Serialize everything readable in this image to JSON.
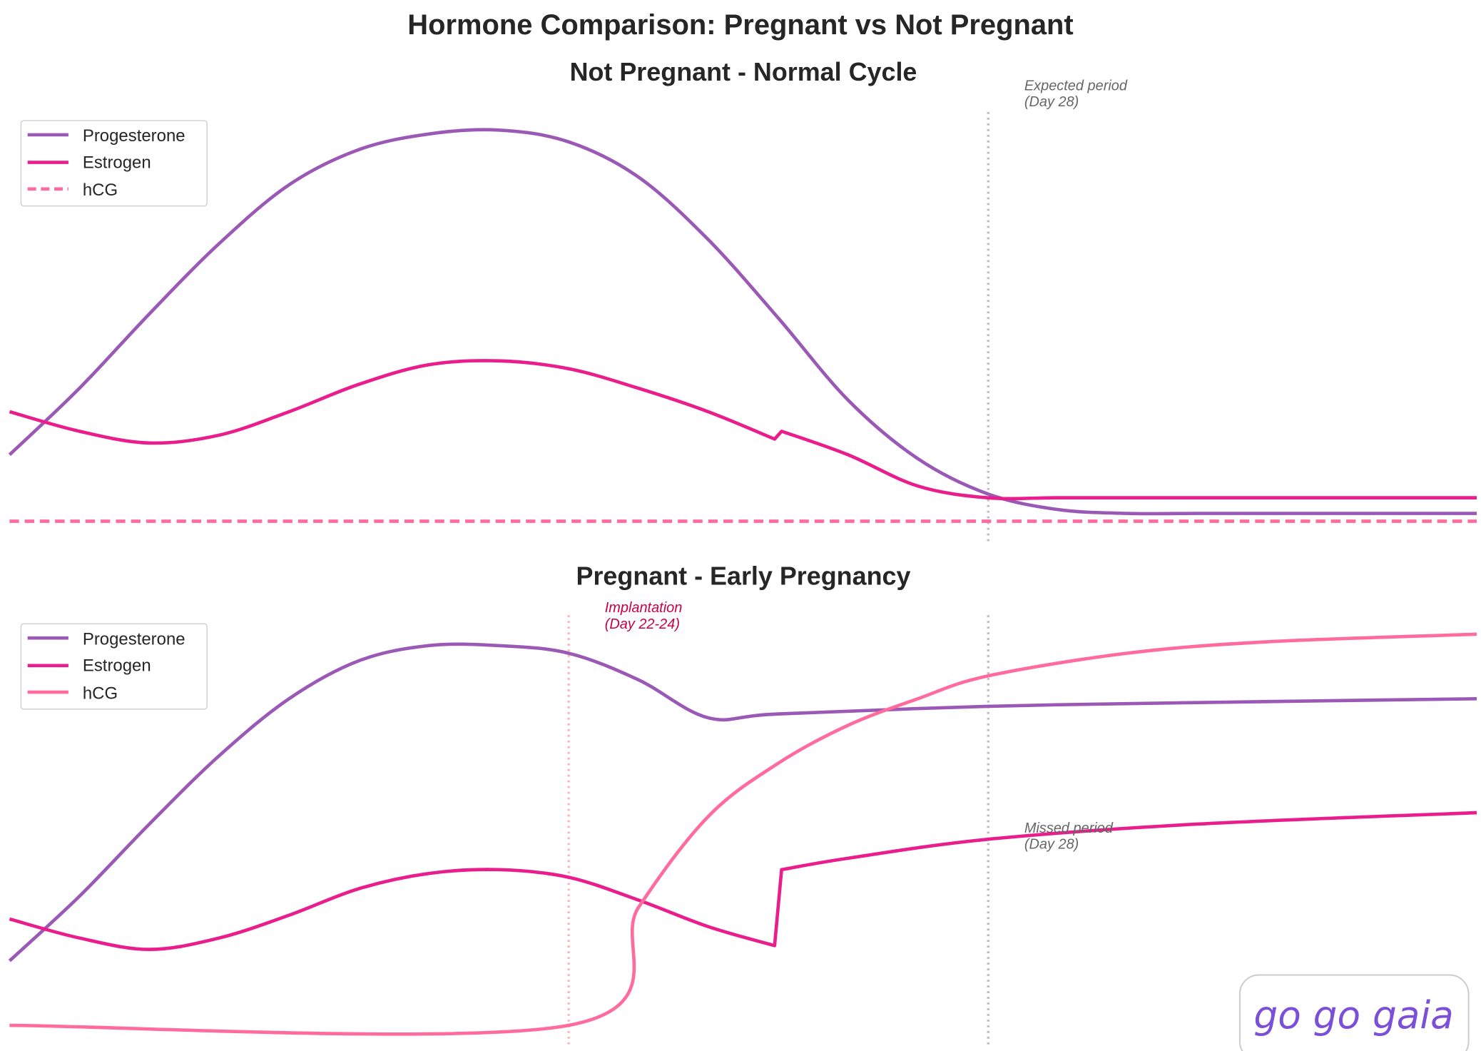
{
  "title": "Hormone Comparison: Pregnant vs Not Pregnant",
  "colors": {
    "progesterone": "#9b59b6",
    "estrogen": "#e91e8c",
    "hcg": "#ff6b9d",
    "logo": "#7b4fd8"
  },
  "logo_text": "go go gaia",
  "chart_data": [
    {
      "type": "line",
      "title": "Not Pregnant - Normal Cycle",
      "x_note": "cycle day (axis hidden)",
      "grid": false,
      "axes_visible": false,
      "legend": "top-left",
      "annotations": [
        {
          "text_line1": "Expected period",
          "text_line2": "(Day 28)",
          "x": 28
        }
      ],
      "series": [
        {
          "name": "Progesterone",
          "style": "solid",
          "x": [
            14,
            15,
            16,
            17,
            18,
            19,
            20,
            21,
            22,
            23,
            24,
            25,
            26,
            27,
            28,
            29,
            30,
            31,
            32,
            33,
            34,
            35
          ],
          "y": [
            0.17,
            0.34,
            0.53,
            0.71,
            0.86,
            0.95,
            0.99,
            1.0,
            0.97,
            0.88,
            0.72,
            0.52,
            0.31,
            0.16,
            0.07,
            0.03,
            0.02,
            0.02,
            0.02,
            0.02,
            0.02,
            0.02
          ]
        },
        {
          "name": "Estrogen",
          "style": "solid",
          "x": [
            14,
            15,
            16,
            17,
            18,
            19,
            20,
            21,
            22,
            23,
            24,
            24.95,
            25.05,
            26,
            27,
            28,
            29,
            30,
            32,
            35
          ],
          "y": [
            0.28,
            0.23,
            0.2,
            0.22,
            0.28,
            0.35,
            0.4,
            0.41,
            0.39,
            0.34,
            0.28,
            0.21,
            0.23,
            0.17,
            0.09,
            0.06,
            0.06,
            0.06,
            0.06,
            0.06
          ]
        },
        {
          "name": "hCG",
          "style": "dashed",
          "x": [
            14,
            35
          ],
          "y": [
            0,
            0
          ]
        }
      ]
    },
    {
      "type": "line",
      "title": "Pregnant - Early Pregnancy",
      "x_note": "cycle day (axis hidden)",
      "grid": false,
      "axes_visible": false,
      "legend": "top-left",
      "annotations": [
        {
          "text_line1": "Implantation",
          "text_line2": "(Day 22-24)",
          "x": 22
        },
        {
          "text_line1": "Missed period",
          "text_line2": "(Day 28)",
          "x": 28
        }
      ],
      "series": [
        {
          "name": "Progesterone",
          "style": "solid",
          "x": [
            14,
            15,
            16,
            17,
            18,
            19,
            20,
            21,
            22,
            23,
            24,
            25,
            28,
            31,
            35
          ],
          "y": [
            0.17,
            0.34,
            0.53,
            0.71,
            0.86,
            0.96,
            1.0,
            1.0,
            0.98,
            0.91,
            0.81,
            0.82,
            0.84,
            0.85,
            0.86
          ]
        },
        {
          "name": "Estrogen",
          "style": "solid",
          "x": [
            14,
            15,
            16,
            17,
            18,
            19,
            20,
            21,
            22,
            23,
            24,
            24.95,
            25.05,
            26,
            28,
            31,
            35
          ],
          "y": [
            0.28,
            0.23,
            0.2,
            0.23,
            0.29,
            0.36,
            0.4,
            0.41,
            0.39,
            0.33,
            0.26,
            0.21,
            0.41,
            0.44,
            0.49,
            0.53,
            0.56
          ]
        },
        {
          "name": "hCG",
          "style": "solid",
          "x": [
            14,
            22,
            23,
            24,
            25,
            26,
            27,
            28,
            30,
            32,
            35
          ],
          "y": [
            0,
            0,
            0.31,
            0.55,
            0.69,
            0.79,
            0.86,
            0.92,
            0.98,
            1.01,
            1.03
          ]
        }
      ]
    }
  ]
}
